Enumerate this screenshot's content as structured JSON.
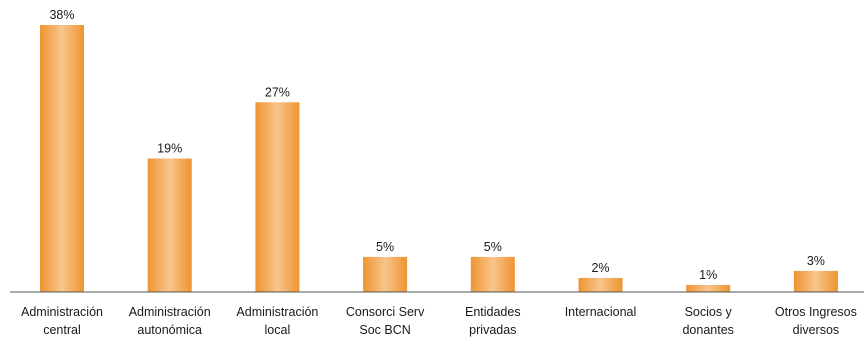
{
  "chart_data": {
    "type": "bar",
    "title": "",
    "xlabel": "",
    "ylabel": "",
    "ylim": [
      0,
      38
    ],
    "grid": false,
    "legend": "none",
    "categories": [
      [
        "Administración",
        "central"
      ],
      [
        "Administración",
        "autonómica"
      ],
      [
        "Administración",
        "local"
      ],
      [
        "Consorci Serv",
        "Soc BCN"
      ],
      [
        "Entidades",
        "privadas"
      ],
      [
        "Internacional"
      ],
      [
        "Socios y",
        "donantes"
      ],
      [
        "Otros Ingresos",
        "diversos"
      ]
    ],
    "values": [
      38,
      19,
      27,
      5,
      5,
      2,
      1,
      3
    ],
    "value_labels": [
      "38%",
      "19%",
      "27%",
      "5%",
      "5%",
      "2%",
      "1%",
      "3%"
    ],
    "colors": {
      "bar_edge": "#ee9430",
      "bar_center": "#f8c58c",
      "axis": "#555555"
    }
  }
}
